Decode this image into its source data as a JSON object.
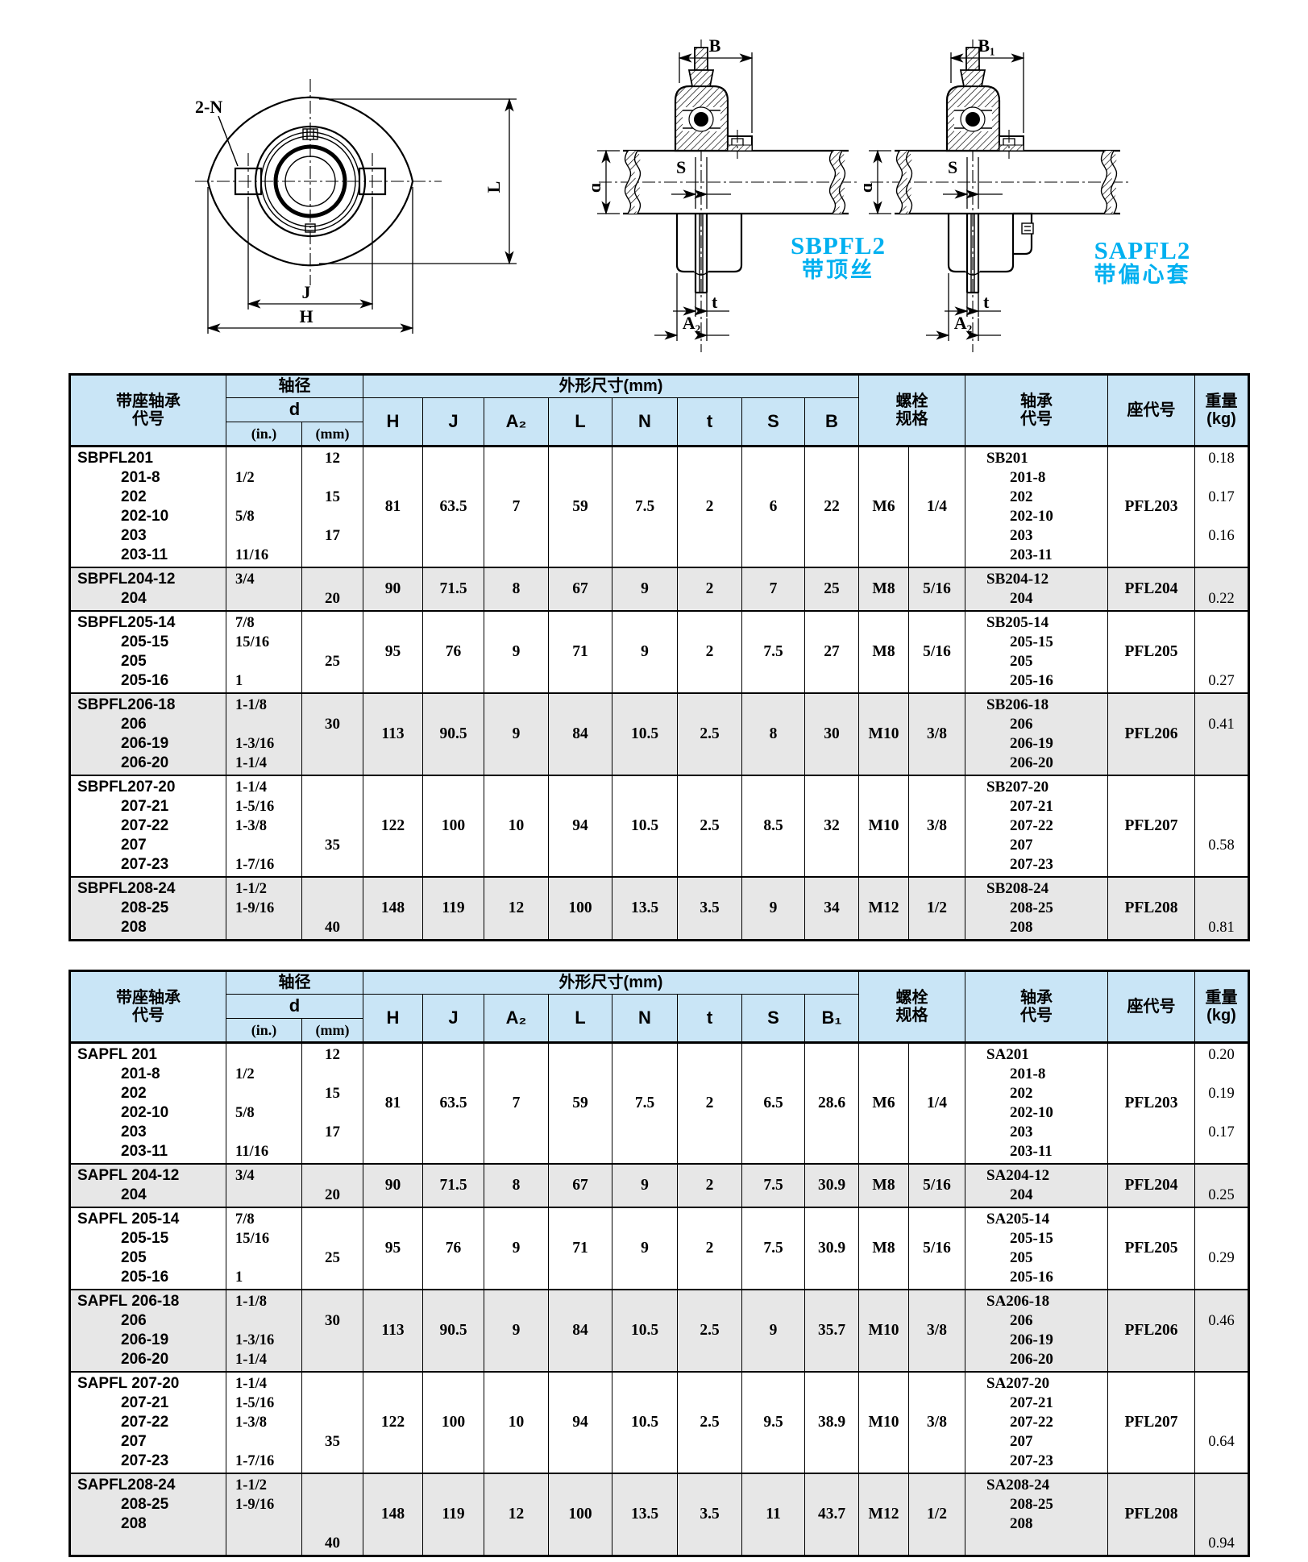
{
  "colors": {
    "header_bg": "#c9e5f6",
    "alt_row_bg": "#e7e7e7",
    "accent_cyan": "#00b0f0",
    "line": "#000000"
  },
  "drawings": {
    "front_view": {
      "bolt_holes_label": "2-N",
      "dim_j": "J",
      "dim_h": "H",
      "dim_l": "L"
    },
    "section_setscrew": {
      "dim_b": "B",
      "dim_d": "d",
      "dim_s": "S",
      "dim_t": "t",
      "dim_a2": "A₂",
      "model": "SBPFL2",
      "feature": "带顶丝"
    },
    "section_eccentric": {
      "dim_b": "B₁",
      "dim_d": "d",
      "dim_s": "S",
      "dim_t": "t",
      "dim_a2": "A₂",
      "model": "SAPFL2",
      "feature": "带偏心套"
    }
  },
  "tables": [
    {
      "header": {
        "unit_code": "带座轴承\n代号",
        "shaft_dia": "轴径",
        "d": "d",
        "d_in": "(in.)",
        "d_mm": "(mm)",
        "dims_title": "外形尺寸(mm)",
        "dim_cols": [
          "H",
          "J",
          "A₂",
          "L",
          "N",
          "t",
          "S",
          "B"
        ],
        "bolt": "螺栓\n规格",
        "bearing_code": "轴承\n代号",
        "seat_code": "座代号",
        "weight": "重量\n(kg)"
      },
      "rows": [
        {
          "shaded": false,
          "codes": [
            "SBPFL201",
            "201-8",
            "202",
            "202-10",
            "203",
            "203-11"
          ],
          "d_in": [
            "",
            "1/2",
            "",
            "5/8",
            "",
            "11/16"
          ],
          "d_mm": [
            "12",
            "",
            "15",
            "",
            "17",
            ""
          ],
          "dims": [
            "81",
            "63.5",
            "7",
            "59",
            "7.5",
            "2",
            "6",
            "22"
          ],
          "bolt": [
            "M6",
            "1/4"
          ],
          "bearing_codes": [
            "SB201",
            "201-8",
            "202",
            "202-10",
            "203",
            "203-11"
          ],
          "seat": "PFL203",
          "weights": [
            "0.18",
            "",
            "0.17",
            "",
            "0.16",
            ""
          ]
        },
        {
          "shaded": true,
          "codes": [
            "SBPFL204-12",
            "204"
          ],
          "d_in": [
            "3/4",
            ""
          ],
          "d_mm": [
            "",
            "20"
          ],
          "dims": [
            "90",
            "71.5",
            "8",
            "67",
            "9",
            "2",
            "7",
            "25"
          ],
          "bolt": [
            "M8",
            "5/16"
          ],
          "bearing_codes": [
            "SB204-12",
            "204"
          ],
          "seat": "PFL204",
          "weights": [
            "",
            "0.22"
          ]
        },
        {
          "shaded": false,
          "codes": [
            "SBPFL205-14",
            "205-15",
            "205",
            "205-16"
          ],
          "d_in": [
            "7/8",
            "15/16",
            "",
            "1"
          ],
          "d_mm": [
            "",
            "",
            "25",
            ""
          ],
          "dims": [
            "95",
            "76",
            "9",
            "71",
            "9",
            "2",
            "7.5",
            "27"
          ],
          "bolt": [
            "M8",
            "5/16"
          ],
          "bearing_codes": [
            "SB205-14",
            "205-15",
            "205",
            "205-16"
          ],
          "seat": "PFL205",
          "weights": [
            "",
            "",
            "",
            "0.27"
          ]
        },
        {
          "shaded": true,
          "codes": [
            "SBPFL206-18",
            "206",
            "206-19",
            "206-20"
          ],
          "d_in": [
            "1-1/8",
            "",
            "1-3/16",
            "1-1/4"
          ],
          "d_mm": [
            "",
            "30",
            "",
            ""
          ],
          "dims": [
            "113",
            "90.5",
            "9",
            "84",
            "10.5",
            "2.5",
            "8",
            "30"
          ],
          "bolt": [
            "M10",
            "3/8"
          ],
          "bearing_codes": [
            "SB206-18",
            "206",
            "206-19",
            "206-20"
          ],
          "seat": "PFL206",
          "weights": [
            "",
            "0.41",
            "",
            ""
          ]
        },
        {
          "shaded": false,
          "codes": [
            "SBPFL207-20",
            "207-21",
            "207-22",
            "207",
            "207-23"
          ],
          "d_in": [
            "1-1/4",
            "1-5/16",
            "1-3/8",
            "",
            "1-7/16"
          ],
          "d_mm": [
            "",
            "",
            "",
            "35",
            ""
          ],
          "dims": [
            "122",
            "100",
            "10",
            "94",
            "10.5",
            "2.5",
            "8.5",
            "32"
          ],
          "bolt": [
            "M10",
            "3/8"
          ],
          "bearing_codes": [
            "SB207-20",
            "207-21",
            "207-22",
            "207",
            "207-23"
          ],
          "seat": "PFL207",
          "weights": [
            "",
            "",
            "",
            "0.58",
            ""
          ]
        },
        {
          "shaded": true,
          "codes": [
            "SBPFL208-24",
            "208-25",
            "208"
          ],
          "d_in": [
            "1-1/2",
            "1-9/16",
            ""
          ],
          "d_mm": [
            "",
            "",
            "40"
          ],
          "dims": [
            "148",
            "119",
            "12",
            "100",
            "13.5",
            "3.5",
            "9",
            "34"
          ],
          "bolt": [
            "M12",
            "1/2"
          ],
          "bearing_codes": [
            "SB208-24",
            "208-25",
            "208"
          ],
          "seat": "PFL208",
          "weights": [
            "",
            "",
            "0.81"
          ]
        }
      ]
    },
    {
      "header": {
        "unit_code": "带座轴承\n代号",
        "shaft_dia": "轴径",
        "d": "d",
        "d_in": "(in.)",
        "d_mm": "(mm)",
        "dims_title": "外形尺寸(mm)",
        "dim_cols": [
          "H",
          "J",
          "A₂",
          "L",
          "N",
          "t",
          "S",
          "B₁"
        ],
        "bolt": "螺栓\n规格",
        "bearing_code": "轴承\n代号",
        "seat_code": "座代号",
        "weight": "重量\n(kg)"
      },
      "rows": [
        {
          "shaded": false,
          "codes": [
            "SAPFL 201",
            "201-8",
            "202",
            "202-10",
            "203",
            "203-11"
          ],
          "d_in": [
            "",
            "1/2",
            "",
            "5/8",
            "",
            "11/16"
          ],
          "d_mm": [
            "12",
            "",
            "15",
            "",
            "17",
            ""
          ],
          "dims": [
            "81",
            "63.5",
            "7",
            "59",
            "7.5",
            "2",
            "6.5",
            "28.6"
          ],
          "bolt": [
            "M6",
            "1/4"
          ],
          "bearing_codes": [
            "SA201",
            "201-8",
            "202",
            "202-10",
            "203",
            "203-11"
          ],
          "seat": "PFL203",
          "weights": [
            "0.20",
            "",
            "0.19",
            "",
            "0.17",
            ""
          ]
        },
        {
          "shaded": true,
          "codes": [
            "SAPFL 204-12",
            "204"
          ],
          "d_in": [
            "3/4",
            ""
          ],
          "d_mm": [
            "",
            "20"
          ],
          "dims": [
            "90",
            "71.5",
            "8",
            "67",
            "9",
            "2",
            "7.5",
            "30.9"
          ],
          "bolt": [
            "M8",
            "5/16"
          ],
          "bearing_codes": [
            "SA204-12",
            "204"
          ],
          "seat": "PFL204",
          "weights": [
            "",
            "0.25"
          ]
        },
        {
          "shaded": false,
          "codes": [
            "SAPFL 205-14",
            "205-15",
            "205",
            "205-16"
          ],
          "d_in": [
            "7/8",
            "15/16",
            "",
            "1"
          ],
          "d_mm": [
            "",
            "",
            "25",
            ""
          ],
          "dims": [
            "95",
            "76",
            "9",
            "71",
            "9",
            "2",
            "7.5",
            "30.9"
          ],
          "bolt": [
            "M8",
            "5/16"
          ],
          "bearing_codes": [
            "SA205-14",
            "205-15",
            "205",
            "205-16"
          ],
          "seat": "PFL205",
          "weights": [
            "",
            "",
            "0.29",
            ""
          ]
        },
        {
          "shaded": true,
          "codes": [
            "SAPFL 206-18",
            "206",
            "206-19",
            "206-20"
          ],
          "d_in": [
            "1-1/8",
            "",
            "1-3/16",
            "1-1/4"
          ],
          "d_mm": [
            "",
            "30",
            "",
            ""
          ],
          "dims": [
            "113",
            "90.5",
            "9",
            "84",
            "10.5",
            "2.5",
            "9",
            "35.7"
          ],
          "bolt": [
            "M10",
            "3/8"
          ],
          "bearing_codes": [
            "SA206-18",
            "206",
            "206-19",
            "206-20"
          ],
          "seat": "PFL206",
          "weights": [
            "",
            "0.46",
            "",
            ""
          ]
        },
        {
          "shaded": false,
          "codes": [
            "SAPFL 207-20",
            "207-21",
            "207-22",
            "207",
            "207-23"
          ],
          "d_in": [
            "1-1/4",
            "1-5/16",
            "1-3/8",
            "",
            "1-7/16"
          ],
          "d_mm": [
            "",
            "",
            "",
            "35",
            ""
          ],
          "dims": [
            "122",
            "100",
            "10",
            "94",
            "10.5",
            "2.5",
            "9.5",
            "38.9"
          ],
          "bolt": [
            "M10",
            "3/8"
          ],
          "bearing_codes": [
            "SA207-20",
            "207-21",
            "207-22",
            "207",
            "207-23"
          ],
          "seat": "PFL207",
          "weights": [
            "",
            "",
            "",
            "0.64",
            ""
          ]
        },
        {
          "shaded": true,
          "codes": [
            "SAPFL208-24",
            "208-25",
            "208",
            ""
          ],
          "d_in": [
            "1-1/2",
            "1-9/16",
            "",
            ""
          ],
          "d_mm": [
            "",
            "",
            "",
            "40"
          ],
          "dims": [
            "148",
            "119",
            "12",
            "100",
            "13.5",
            "3.5",
            "11",
            "43.7"
          ],
          "bolt": [
            "M12",
            "1/2"
          ],
          "bearing_codes": [
            "SA208-24",
            "208-25",
            "208",
            ""
          ],
          "seat": "PFL208",
          "weights": [
            "",
            "",
            "",
            "0.94"
          ]
        }
      ]
    }
  ]
}
